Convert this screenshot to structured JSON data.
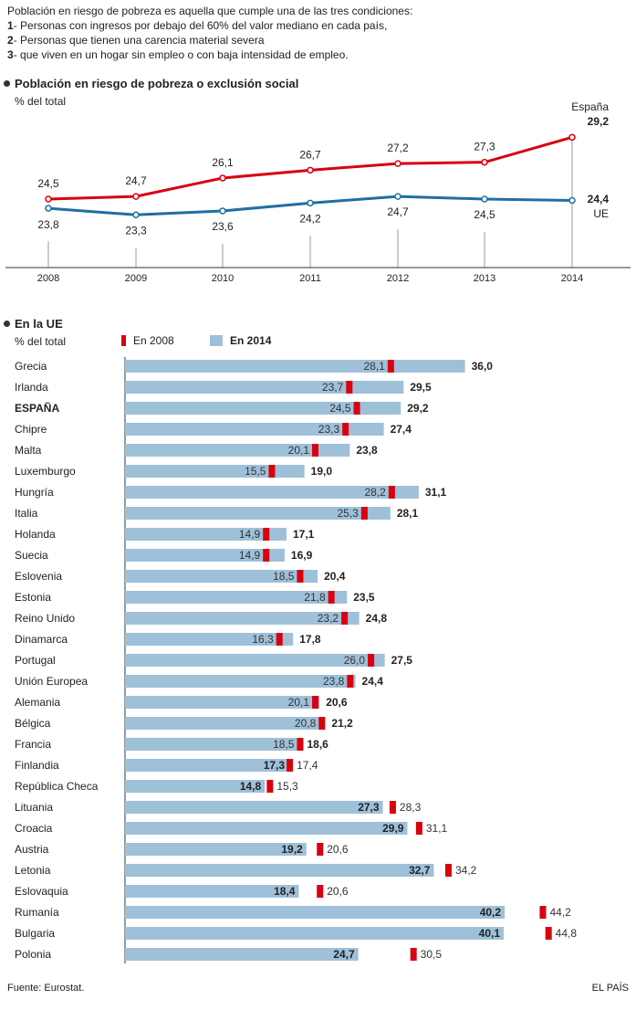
{
  "intro": {
    "heading": "Población en riesgo de pobreza es aquella que cumple una de las tres condiciones:",
    "items": [
      {
        "num": "1",
        "text": "- Personas con ingresos por debajo del 60% del valor mediano en cada país,"
      },
      {
        "num": "2",
        "text": "- Personas que tienen una carencia material severa"
      },
      {
        "num": "3",
        "text": "- que viven en un hogar sin empleo o con baja intensidad de empleo."
      }
    ]
  },
  "colors": {
    "spain": "#d9000f",
    "eu": "#1f6fa5",
    "bar": "#9fc0d9",
    "marker": "#d9000f"
  },
  "line_section": {
    "title": "Población en riesgo de pobreza o exclusión social",
    "unit": "% del total"
  },
  "bar_section": {
    "title": "En la UE",
    "unit": "% del total",
    "legend_2008": "En 2008",
    "legend_2014": "En 2014"
  },
  "footer": {
    "source": "Fuente: Eurostat.",
    "brand": "EL PAÍS"
  },
  "chart_data": [
    {
      "type": "line",
      "x": [
        "2008",
        "2009",
        "2010",
        "2011",
        "2012",
        "2013",
        "2014"
      ],
      "series": [
        {
          "name": "España",
          "values": [
            24.5,
            24.7,
            26.1,
            26.7,
            27.2,
            27.3,
            29.2
          ],
          "labels": [
            "24,5",
            "24,7",
            "26,1",
            "26,7",
            "27,2",
            "27,3",
            "29,2"
          ]
        },
        {
          "name": "UE",
          "values": [
            23.8,
            23.3,
            23.6,
            24.2,
            24.7,
            24.5,
            24.4
          ],
          "labels": [
            "23,8",
            "23,3",
            "23,6",
            "24,2",
            "24,7",
            "24,5",
            "24,4"
          ]
        }
      ]
    },
    {
      "type": "bar",
      "categories": [
        {
          "name": "Grecia",
          "v2014": 36.0,
          "v2008": 28.1,
          "l2014": "36,0",
          "l2008": "28,1"
        },
        {
          "name": "Irlanda",
          "v2014": 29.5,
          "v2008": 23.7,
          "l2014": "29,5",
          "l2008": "23,7"
        },
        {
          "name": "ESPAÑA",
          "v2014": 29.2,
          "v2008": 24.5,
          "l2014": "29,2",
          "l2008": "24,5",
          "highlight": true
        },
        {
          "name": "Chipre",
          "v2014": 27.4,
          "v2008": 23.3,
          "l2014": "27,4",
          "l2008": "23,3"
        },
        {
          "name": "Malta",
          "v2014": 23.8,
          "v2008": 20.1,
          "l2014": "23,8",
          "l2008": "20,1"
        },
        {
          "name": "Luxemburgo",
          "v2014": 19.0,
          "v2008": 15.5,
          "l2014": "19,0",
          "l2008": "15,5"
        },
        {
          "name": "Hungría",
          "v2014": 31.1,
          "v2008": 28.2,
          "l2014": "31,1",
          "l2008": "28,2"
        },
        {
          "name": "Italia",
          "v2014": 28.1,
          "v2008": 25.3,
          "l2014": "28,1",
          "l2008": "25,3"
        },
        {
          "name": "Holanda",
          "v2014": 17.1,
          "v2008": 14.9,
          "l2014": "17,1",
          "l2008": "14,9"
        },
        {
          "name": "Suecia",
          "v2014": 16.9,
          "v2008": 14.9,
          "l2014": "16,9",
          "l2008": "14,9"
        },
        {
          "name": "Eslovenia",
          "v2014": 20.4,
          "v2008": 18.5,
          "l2014": "20,4",
          "l2008": "18,5"
        },
        {
          "name": "Estonia",
          "v2014": 23.5,
          "v2008": 21.8,
          "l2014": "23,5",
          "l2008": "21,8"
        },
        {
          "name": "Reino Unido",
          "v2014": 24.8,
          "v2008": 23.2,
          "l2014": "24,8",
          "l2008": "23,2"
        },
        {
          "name": "Dinamarca",
          "v2014": 17.8,
          "v2008": 16.3,
          "l2014": "17,8",
          "l2008": "16,3"
        },
        {
          "name": "Portugal",
          "v2014": 27.5,
          "v2008": 26.0,
          "l2014": "27,5",
          "l2008": "26,0"
        },
        {
          "name": "Unión Europea",
          "v2014": 24.4,
          "v2008": 23.8,
          "l2014": "24,4",
          "l2008": "23,8"
        },
        {
          "name": "Alemania",
          "v2014": 20.6,
          "v2008": 20.1,
          "l2014": "20,6",
          "l2008": "20,1"
        },
        {
          "name": "Bélgica",
          "v2014": 21.2,
          "v2008": 20.8,
          "l2014": "21,2",
          "l2008": "20,8"
        },
        {
          "name": "Francia",
          "v2014": 18.6,
          "v2008": 18.5,
          "l2014": "18,6",
          "l2008": "18,5"
        },
        {
          "name": "Finlandia",
          "v2014": 17.3,
          "v2008": 17.4,
          "l2014": "17,3",
          "l2008": "17,4"
        },
        {
          "name": "República Checa",
          "v2014": 14.8,
          "v2008": 15.3,
          "l2014": "14,8",
          "l2008": "15,3"
        },
        {
          "name": "Lituania",
          "v2014": 27.3,
          "v2008": 28.3,
          "l2014": "27,3",
          "l2008": "28,3"
        },
        {
          "name": "Croacia",
          "v2014": 29.9,
          "v2008": 31.1,
          "l2014": "29,9",
          "l2008": "31,1"
        },
        {
          "name": "Austria",
          "v2014": 19.2,
          "v2008": 20.6,
          "l2014": "19,2",
          "l2008": "20,6"
        },
        {
          "name": "Letonia",
          "v2014": 32.7,
          "v2008": 34.2,
          "l2014": "32,7",
          "l2008": "34,2"
        },
        {
          "name": "Eslovaquia",
          "v2014": 18.4,
          "v2008": 20.6,
          "l2014": "18,4",
          "l2008": "20,6"
        },
        {
          "name": "Rumanía",
          "v2014": 40.2,
          "v2008": 44.2,
          "l2014": "40,2",
          "l2008": "44,2"
        },
        {
          "name": "Bulgaria",
          "v2014": 40.1,
          "v2008": 44.8,
          "l2014": "40,1",
          "l2008": "44,8"
        },
        {
          "name": "Polonia",
          "v2014": 24.7,
          "v2008": 30.5,
          "l2014": "24,7",
          "l2008": "30,5"
        }
      ]
    }
  ]
}
